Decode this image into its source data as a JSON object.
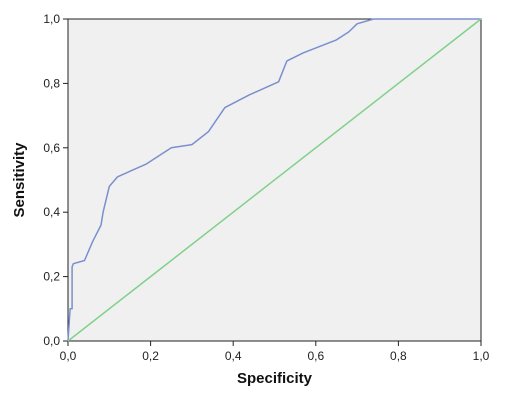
{
  "chart_data": {
    "type": "line",
    "title": "",
    "xlabel": "Specificity",
    "ylabel": "Sensitivity",
    "xlim": [
      0,
      1
    ],
    "ylim": [
      0,
      1
    ],
    "x_ticks": [
      "0,0",
      "0,2",
      "0,4",
      "0,6",
      "0,8",
      "1,0"
    ],
    "y_ticks": [
      "0,0",
      "0,2",
      "0,4",
      "0,6",
      "0,8",
      "1,0"
    ],
    "grid": false,
    "background_color": "#f0f0f0",
    "series": [
      {
        "color": "#7b8fd0",
        "x": [
          0,
          0.005,
          0.01,
          0.01,
          0.013,
          0.04,
          0.06,
          0.08,
          0.085,
          0.1,
          0.12,
          0.19,
          0.25,
          0.3,
          0.34,
          0.38,
          0.44,
          0.51,
          0.53,
          0.57,
          0.65,
          0.68,
          0.7,
          0.74,
          0.85,
          1.0
        ],
        "y": [
          0,
          0.1,
          0.1,
          0.23,
          0.24,
          0.25,
          0.31,
          0.36,
          0.4,
          0.48,
          0.51,
          0.55,
          0.6,
          0.61,
          0.65,
          0.725,
          0.765,
          0.805,
          0.87,
          0.895,
          0.935,
          0.96,
          0.985,
          1.0,
          1.0,
          1.0
        ]
      },
      {
        "color": "#7fd18a",
        "x": [
          0,
          1
        ],
        "y": [
          0,
          1
        ]
      }
    ]
  }
}
